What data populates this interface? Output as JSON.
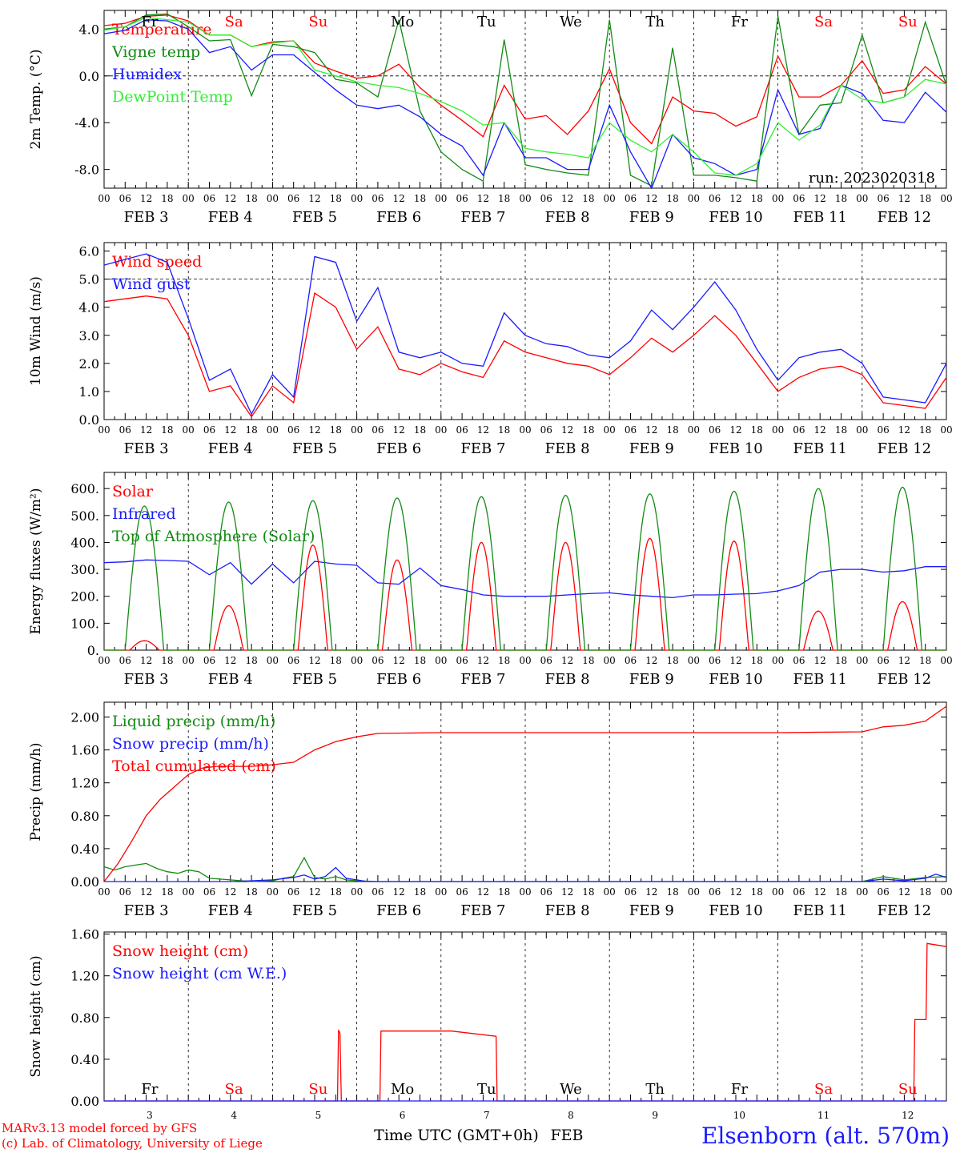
{
  "colors": {
    "red": "#ff0000",
    "green": "#138a13",
    "blue": "#1a1aff",
    "lime": "#33ee33",
    "black": "#000000"
  },
  "hour_ticks": [
    "00",
    "06",
    "12",
    "18"
  ],
  "days_of_week": [
    {
      "label": "Fr",
      "color": "#000000"
    },
    {
      "label": "Sa",
      "color": "#ff0000"
    },
    {
      "label": "Su",
      "color": "#ff0000"
    },
    {
      "label": "Mo",
      "color": "#000000"
    },
    {
      "label": "Tu",
      "color": "#000000"
    },
    {
      "label": "We",
      "color": "#000000"
    },
    {
      "label": "Th",
      "color": "#000000"
    },
    {
      "label": "Fr",
      "color": "#000000"
    },
    {
      "label": "Sa",
      "color": "#ff0000"
    },
    {
      "label": "Su",
      "color": "#ff0000"
    }
  ],
  "date_labels": [
    "FEB  3",
    "FEB  4",
    "FEB  5",
    "FEB  6",
    "FEB  7",
    "FEB  8",
    "FEB  9",
    "FEB 10",
    "FEB 11",
    "FEB 12"
  ],
  "day_numbers": [
    "3",
    "4",
    "5",
    "6",
    "7",
    "8",
    "9",
    "10",
    "11",
    "12"
  ],
  "footer": {
    "credit_line1": "MARv3.13 model forced by GFS",
    "credit_line2": "(c) Lab. of Climatology, University of Liege",
    "time_axis_label": "Time UTC (GMT+0h)",
    "month_label": "FEB",
    "station": "Elsenborn (alt. 570m)"
  },
  "chart_data": [
    {
      "type": "line",
      "ylabel": "2m Temp. (°C)",
      "ylim": [
        -9.6,
        5.6
      ],
      "yticks": [
        4.0,
        0.0,
        -4.0,
        -8.0
      ],
      "ytick_labels": [
        "4.0",
        "0.0",
        "-4.0",
        "-8.0"
      ],
      "hline": 0.0,
      "annotation": "run: 2023020318",
      "x_unit": "hours since FEB 3 00 UTC",
      "x_range": [
        0,
        240
      ],
      "legend_position": "left",
      "series": [
        {
          "name": "Temperature",
          "color": "#ff0000",
          "x": [
            0,
            6,
            12,
            18,
            24,
            30,
            36,
            42,
            48,
            54,
            60,
            66,
            72,
            78,
            84,
            90,
            96,
            102,
            108,
            114,
            120,
            126,
            132,
            138,
            144,
            150,
            156,
            162,
            168,
            174,
            180,
            186,
            192,
            198,
            204,
            210,
            216,
            222,
            228,
            234,
            240
          ],
          "y": [
            4.3,
            4.5,
            5.1,
            5.2,
            4.7,
            3.5,
            3.5,
            2.5,
            2.9,
            3.0,
            1.1,
            0.4,
            -0.2,
            0.0,
            1.0,
            -1.0,
            -2.5,
            -3.8,
            -5.2,
            -0.8,
            -3.7,
            -3.4,
            -5.0,
            -3.0,
            0.6,
            -4.0,
            -5.8,
            -1.8,
            -3.0,
            -3.2,
            -4.3,
            -3.5,
            1.7,
            -1.8,
            -1.8,
            -0.8,
            1.3,
            -1.5,
            -1.2,
            0.8,
            -0.7
          ]
        },
        {
          "name": "Vigne temp",
          "color": "#138a13",
          "x": [
            0,
            6,
            12,
            18,
            24,
            30,
            36,
            42,
            48,
            54,
            60,
            66,
            72,
            78,
            84,
            90,
            96,
            102,
            108,
            114,
            120,
            126,
            132,
            138,
            144,
            150,
            156,
            162,
            168,
            174,
            180,
            186,
            192,
            198,
            204,
            210,
            216,
            222,
            228,
            234,
            240
          ],
          "y": [
            4.0,
            4.2,
            5.2,
            5.3,
            4.2,
            3.0,
            3.1,
            -1.7,
            2.7,
            2.5,
            2.0,
            -0.3,
            -0.6,
            -1.8,
            4.8,
            -3.0,
            -6.5,
            -8.0,
            -9.0,
            3.1,
            -7.6,
            -8.0,
            -8.3,
            -8.5,
            4.8,
            -8.5,
            -9.4,
            2.4,
            -8.5,
            -8.5,
            -8.7,
            -9.0,
            5.1,
            -5.0,
            -2.5,
            -2.3,
            3.5,
            -2.3,
            -1.8,
            4.6,
            -0.8
          ]
        },
        {
          "name": "Humidex",
          "color": "#1a1aff",
          "x": [
            0,
            6,
            12,
            18,
            24,
            30,
            36,
            42,
            48,
            54,
            60,
            66,
            72,
            78,
            84,
            90,
            96,
            102,
            108,
            114,
            120,
            126,
            132,
            138,
            144,
            150,
            156,
            162,
            168,
            174,
            180,
            186,
            192,
            198,
            204,
            210,
            216,
            222,
            228,
            234,
            240
          ],
          "y": [
            3.6,
            3.9,
            4.8,
            4.7,
            4.0,
            2.0,
            2.5,
            0.5,
            1.8,
            1.8,
            0.3,
            -1.2,
            -2.5,
            -2.8,
            -2.5,
            -3.5,
            -5.0,
            -6.0,
            -8.5,
            -4.0,
            -7.0,
            -7.0,
            -8.0,
            -8.0,
            -2.5,
            -6.5,
            -9.6,
            -5.0,
            -7.0,
            -7.5,
            -8.5,
            -8.0,
            -1.2,
            -5.0,
            -4.5,
            -0.8,
            -1.5,
            -3.8,
            -4.0,
            -1.4,
            -3.1
          ]
        },
        {
          "name": "DewPoint Temp",
          "color": "#33ee33",
          "x": [
            0,
            6,
            12,
            18,
            24,
            30,
            36,
            42,
            48,
            54,
            60,
            66,
            72,
            78,
            84,
            90,
            96,
            102,
            108,
            114,
            120,
            126,
            132,
            138,
            144,
            150,
            156,
            162,
            168,
            174,
            180,
            186,
            192,
            198,
            204,
            210,
            216,
            222,
            228,
            234,
            240
          ],
          "y": [
            3.9,
            4.2,
            5.0,
            4.8,
            4.6,
            3.5,
            3.5,
            2.5,
            2.8,
            3.0,
            0.5,
            0.0,
            -0.5,
            -0.8,
            -1.0,
            -1.5,
            -2.2,
            -3.0,
            -4.2,
            -4.0,
            -6.2,
            -6.5,
            -6.7,
            -7.0,
            -4.0,
            -5.5,
            -6.5,
            -5.0,
            -6.5,
            -8.3,
            -8.5,
            -7.5,
            -4.0,
            -5.5,
            -4.2,
            -0.8,
            -2.0,
            -2.3,
            -1.8,
            -0.3,
            -0.7
          ]
        }
      ]
    },
    {
      "type": "line",
      "ylabel": "10m Wind (m/s)",
      "ylim": [
        0.0,
        6.3
      ],
      "yticks": [
        0.0,
        1.0,
        2.0,
        3.0,
        4.0,
        5.0,
        6.0
      ],
      "ytick_labels": [
        "0.0",
        "1.0",
        "2.0",
        "3.0",
        "4.0",
        "5.0",
        "6.0"
      ],
      "hline": 5.0,
      "x_unit": "hours since FEB 3 00 UTC",
      "x_range": [
        0,
        240
      ],
      "legend_position": "left",
      "series": [
        {
          "name": "Wind speed",
          "color": "#ff0000",
          "x": [
            0,
            6,
            12,
            18,
            24,
            30,
            36,
            42,
            48,
            54,
            60,
            66,
            72,
            78,
            84,
            90,
            96,
            102,
            108,
            114,
            120,
            126,
            132,
            138,
            144,
            150,
            156,
            162,
            168,
            174,
            180,
            186,
            192,
            198,
            204,
            210,
            216,
            222,
            228,
            234,
            240
          ],
          "y": [
            4.2,
            4.3,
            4.4,
            4.3,
            3.0,
            1.0,
            1.2,
            0.1,
            1.2,
            0.6,
            4.5,
            4.0,
            2.5,
            3.3,
            1.8,
            1.6,
            2.0,
            1.7,
            1.5,
            2.8,
            2.4,
            2.2,
            2.0,
            1.9,
            1.6,
            2.2,
            2.9,
            2.4,
            3.0,
            3.7,
            3.0,
            2.0,
            1.0,
            1.5,
            1.8,
            1.9,
            1.6,
            0.6,
            0.5,
            0.4,
            1.5
          ]
        },
        {
          "name": "Wind gust",
          "color": "#1a1aff",
          "x": [
            0,
            6,
            12,
            18,
            24,
            30,
            36,
            42,
            48,
            54,
            60,
            66,
            72,
            78,
            84,
            90,
            96,
            102,
            108,
            114,
            120,
            126,
            132,
            138,
            144,
            150,
            156,
            162,
            168,
            174,
            180,
            186,
            192,
            198,
            204,
            210,
            216,
            222,
            228,
            234,
            240
          ],
          "y": [
            5.5,
            5.7,
            5.9,
            5.6,
            3.6,
            1.4,
            1.8,
            0.2,
            1.6,
            0.8,
            5.8,
            5.6,
            3.5,
            4.7,
            2.4,
            2.2,
            2.4,
            2.0,
            1.9,
            3.8,
            3.0,
            2.7,
            2.6,
            2.3,
            2.2,
            2.8,
            3.9,
            3.2,
            4.0,
            4.9,
            3.9,
            2.5,
            1.4,
            2.2,
            2.4,
            2.5,
            2.0,
            0.8,
            0.7,
            0.6,
            2.0
          ]
        }
      ]
    },
    {
      "type": "line",
      "ylabel": "Energy fluxes (W/m²)",
      "ylim": [
        0,
        660
      ],
      "yticks": [
        0,
        100,
        200,
        300,
        400,
        500,
        600
      ],
      "ytick_labels": [
        "0.",
        "100.",
        "200.",
        "300.",
        "400.",
        "500.",
        "600."
      ],
      "x_unit": "hours since FEB 3 00 UTC",
      "x_range": [
        0,
        240
      ],
      "legend_position": "left",
      "diurnal_peaks": {
        "toa_solar": [
          535,
          550,
          555,
          565,
          570,
          575,
          580,
          590,
          600,
          605
        ],
        "solar": [
          35,
          165,
          390,
          335,
          400,
          400,
          415,
          405,
          145,
          180
        ]
      },
      "series": [
        {
          "name": "Solar",
          "color": "#ff0000",
          "shape": "diurnal-arc"
        },
        {
          "name": "Infrared",
          "color": "#1a1aff",
          "x": [
            0,
            6,
            12,
            18,
            24,
            30,
            36,
            42,
            48,
            54,
            60,
            66,
            72,
            78,
            84,
            90,
            96,
            102,
            108,
            114,
            120,
            126,
            132,
            138,
            144,
            150,
            156,
            162,
            168,
            174,
            180,
            186,
            192,
            198,
            204,
            210,
            216,
            222,
            228,
            234,
            240
          ],
          "y": [
            325,
            328,
            335,
            333,
            330,
            280,
            325,
            245,
            320,
            250,
            330,
            320,
            315,
            250,
            245,
            305,
            240,
            225,
            205,
            200,
            200,
            200,
            205,
            210,
            213,
            205,
            200,
            195,
            205,
            205,
            208,
            210,
            220,
            240,
            290,
            300,
            300,
            290,
            295,
            310,
            310
          ]
        },
        {
          "name": "Top of Atmosphere (Solar)",
          "color": "#138a13",
          "shape": "diurnal-arc"
        }
      ]
    },
    {
      "type": "line",
      "ylabel": "Precip (mm/h)",
      "ylim": [
        0.0,
        2.18
      ],
      "yticks": [
        0.0,
        0.4,
        0.8,
        1.2,
        1.6,
        2.0
      ],
      "ytick_labels": [
        "0.00",
        "0.40",
        "0.80",
        "1.20",
        "1.60",
        "2.00"
      ],
      "x_unit": "hours since FEB 3 00 UTC",
      "x_range": [
        0,
        240
      ],
      "legend_position": "left",
      "series": [
        {
          "name": "Liquid precip (mm/h)",
          "color": "#138a13",
          "x": [
            0,
            3,
            6,
            9,
            12,
            15,
            18,
            21,
            24,
            27,
            30,
            36,
            42,
            48,
            51,
            54,
            57,
            60,
            63,
            66,
            69,
            72,
            78,
            96,
            120,
            144,
            168,
            192,
            216,
            222,
            228,
            234,
            240
          ],
          "y": [
            0.18,
            0.14,
            0.18,
            0.2,
            0.22,
            0.16,
            0.12,
            0.1,
            0.14,
            0.12,
            0.04,
            0.02,
            0.0,
            0.01,
            0.04,
            0.06,
            0.29,
            0.05,
            0.03,
            0.06,
            0.02,
            0.01,
            0.0,
            0.0,
            0.0,
            0.0,
            0.0,
            0.0,
            0.0,
            0.06,
            0.02,
            0.05,
            0.06
          ]
        },
        {
          "name": "Snow precip (mm/h)",
          "color": "#1a1aff",
          "x": [
            0,
            36,
            42,
            48,
            54,
            57,
            60,
            63,
            66,
            69,
            72,
            75,
            78,
            84,
            96,
            120,
            144,
            168,
            192,
            216,
            222,
            228,
            234,
            237,
            240
          ],
          "y": [
            0.0,
            0.0,
            0.01,
            0.02,
            0.05,
            0.08,
            0.03,
            0.06,
            0.17,
            0.04,
            0.02,
            0.0,
            0.0,
            0.0,
            0.0,
            0.0,
            0.0,
            0.0,
            0.0,
            0.0,
            0.03,
            0.01,
            0.04,
            0.09,
            0.05
          ]
        },
        {
          "name": "Total cumulated (cm)",
          "color": "#ff0000",
          "x": [
            0,
            4,
            8,
            12,
            16,
            20,
            24,
            28,
            32,
            36,
            42,
            48,
            54,
            60,
            66,
            72,
            78,
            96,
            120,
            144,
            168,
            192,
            216,
            222,
            228,
            234,
            240
          ],
          "y": [
            0.0,
            0.22,
            0.5,
            0.8,
            1.0,
            1.15,
            1.3,
            1.38,
            1.4,
            1.4,
            1.4,
            1.42,
            1.45,
            1.6,
            1.7,
            1.76,
            1.8,
            1.81,
            1.81,
            1.81,
            1.81,
            1.81,
            1.82,
            1.88,
            1.9,
            1.95,
            2.13
          ]
        }
      ]
    },
    {
      "type": "line",
      "ylabel": "Snow height (cm)",
      "ylim": [
        0.0,
        1.62
      ],
      "yticks": [
        0.0,
        0.4,
        0.8,
        1.2,
        1.6
      ],
      "ytick_labels": [
        "0.00",
        "0.40",
        "0.80",
        "1.20",
        "1.60"
      ],
      "x_unit": "hours since FEB 3 00 UTC",
      "x_range": [
        0,
        240
      ],
      "legend_position": "left",
      "series": [
        {
          "name": "Snow height (cm)",
          "color": "#ff0000",
          "x": [
            0,
            66.5,
            66.8,
            67.2,
            67.6,
            78.6,
            78.9,
            99,
            111.7,
            112.0,
            112.3,
            230.7,
            231.0,
            234.2,
            234.5,
            240
          ],
          "y": [
            0.0,
            0.0,
            0.68,
            0.65,
            0.0,
            0.0,
            0.67,
            0.67,
            0.62,
            0.0,
            0.0,
            0.0,
            0.78,
            0.78,
            1.51,
            1.48
          ]
        },
        {
          "name": "Snow height (cm W.E.)",
          "color": "#1a1aff",
          "x": [
            0,
            240
          ],
          "y": [
            0.0,
            0.0
          ]
        }
      ]
    }
  ]
}
